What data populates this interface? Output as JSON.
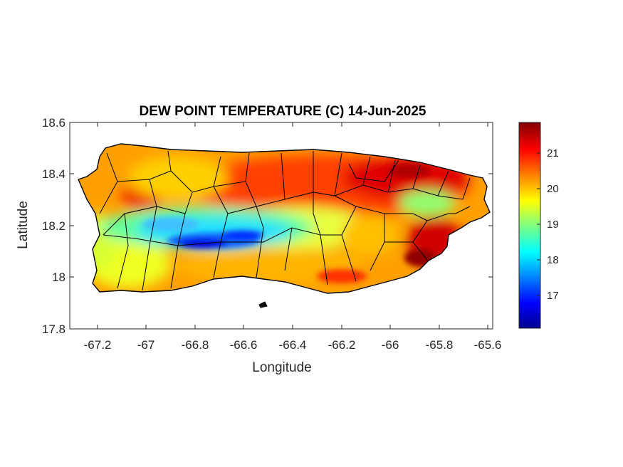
{
  "title": "DEW POINT TEMPERATURE (C) 14-Jun-2025",
  "xlabel": "Longitude",
  "ylabel": "Latitude",
  "x_ticks": [
    "-67.2",
    "-67",
    "-66.8",
    "-66.6",
    "-66.4",
    "-66.2",
    "-66",
    "-65.8",
    "-65.6"
  ],
  "y_ticks": [
    "18.6",
    "18.4",
    "18.2",
    "18",
    "17.8"
  ],
  "colorbar_ticks": [
    "21",
    "20",
    "19",
    "18",
    "17"
  ],
  "colormap": "jet",
  "colors": {
    "high": "#800000",
    "red": "#ff0000",
    "orange": "#ff8000",
    "yellow": "#ffff00",
    "cyan": "#00ffff",
    "blue": "#0000ff",
    "low": "#00008f"
  },
  "chart_data": {
    "type": "heatmap",
    "region": "Puerto Rico",
    "variable": "Dew point temperature (C)",
    "date": "14-Jun-2025",
    "xlim": [
      -67.3,
      -65.58
    ],
    "ylim": [
      17.8,
      18.6
    ],
    "clim": [
      16.1,
      21.9
    ],
    "features": [
      {
        "lon": -66.75,
        "lat": 18.13,
        "value": 16.3
      },
      {
        "lon": -66.62,
        "lat": 18.16,
        "value": 16.9
      },
      {
        "lon": -66.95,
        "lat": 18.17,
        "value": 17.3
      },
      {
        "lon": -67.0,
        "lat": 18.22,
        "value": 18.0
      },
      {
        "lon": -66.45,
        "lat": 18.2,
        "value": 18.4
      },
      {
        "lon": -66.1,
        "lat": 18.4,
        "value": 21.4
      },
      {
        "lon": -65.9,
        "lat": 18.06,
        "value": 21.8
      },
      {
        "lon": -66.97,
        "lat": 18.32,
        "value": 21.3
      },
      {
        "lon": -67.22,
        "lat": 18.05,
        "value": 19.8
      },
      {
        "lon": -66.3,
        "lat": 17.95,
        "value": 20.8
      }
    ]
  }
}
